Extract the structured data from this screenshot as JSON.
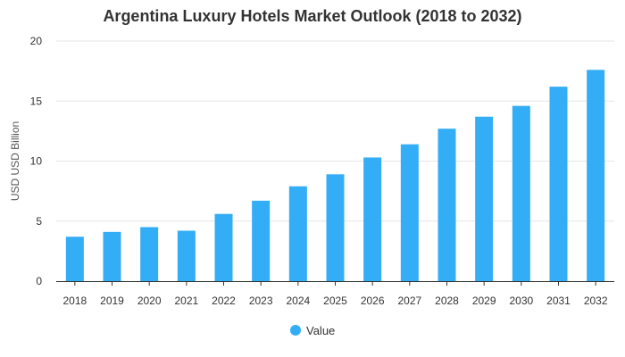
{
  "chart_data": {
    "type": "bar",
    "title": "Argentina Luxury Hotels Market Outlook (2018 to 2032)",
    "xlabel": "",
    "ylabel": "USD USD Billion",
    "categories": [
      "2018",
      "2019",
      "2020",
      "2021",
      "2022",
      "2023",
      "2024",
      "2025",
      "2026",
      "2027",
      "2028",
      "2029",
      "2030",
      "2031",
      "2032"
    ],
    "series": [
      {
        "name": "Value",
        "values": [
          3.7,
          4.1,
          4.5,
          4.2,
          5.6,
          6.7,
          7.9,
          8.9,
          10.3,
          11.4,
          12.7,
          13.7,
          14.6,
          16.2,
          17.6
        ]
      }
    ],
    "ylim": [
      0,
      20
    ],
    "yticks": [
      0,
      5,
      10,
      15,
      20
    ],
    "grid": true,
    "legend": "bottom",
    "bar_color": "#33adf5"
  }
}
